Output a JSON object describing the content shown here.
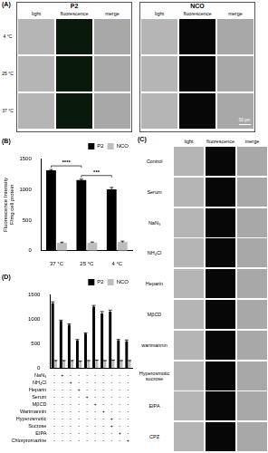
{
  "chart_data": [
    {
      "type": "bar",
      "label": "(B)",
      "categories": [
        "37 °C",
        "25 °C",
        "4 °C"
      ],
      "y_label": [
        "Fluorescence Intensity",
        "F/mg cell protein"
      ],
      "series": [
        {
          "name": "P2",
          "color": "#000000",
          "values": [
            1310,
            1150,
            1000
          ],
          "errors": [
            12,
            15,
            30
          ]
        },
        {
          "name": "NCO",
          "color": "#bdbdbd",
          "values": [
            130,
            135,
            145
          ],
          "errors": [
            10,
            8,
            12
          ]
        }
      ],
      "ylim": [
        0,
        1500
      ],
      "yticks": [
        0,
        500,
        1000,
        1500
      ],
      "grid": false,
      "legend": "top-right",
      "annotations": [
        {
          "text": "****",
          "from": "37 °C",
          "to": "25 °C"
        },
        {
          "text": "***",
          "from": "25 °C",
          "to": "4 °C"
        }
      ]
    },
    {
      "type": "bar",
      "label": "(D)",
      "categories": [
        null,
        null,
        null,
        null,
        null,
        null,
        null,
        null,
        null,
        null
      ],
      "series": [
        {
          "name": "P2",
          "color": "#000000",
          "values": [
            1320,
            960,
            880,
            560,
            700,
            1250,
            1110,
            1150,
            560,
            540
          ],
          "errors": [
            30,
            15,
            20,
            20,
            15,
            25,
            40,
            30,
            20,
            30
          ]
        },
        {
          "name": "NCO",
          "color": "#bdbdbd",
          "values": [
            140,
            140,
            140,
            130,
            140,
            150,
            140,
            150,
            140,
            140
          ],
          "errors": [
            10,
            10,
            10,
            10,
            10,
            10,
            10,
            10,
            10,
            10
          ]
        }
      ],
      "ylim": [
        0,
        1500
      ],
      "yticks": [
        0,
        500,
        1000,
        1500
      ],
      "grid": false,
      "legend": "top-right",
      "tick_labels": "y",
      "treatments": [
        {
          "label": "NaN₃",
          "signs": [
            "-",
            "+",
            "-",
            "-",
            "-",
            "-",
            "-",
            "-",
            "-",
            "-"
          ]
        },
        {
          "label": "NH₄Cl",
          "signs": [
            "-",
            "-",
            "+",
            "-",
            "-",
            "-",
            "-",
            "-",
            "-",
            "-"
          ]
        },
        {
          "label": "Heparin",
          "signs": [
            "-",
            "-",
            "-",
            "+",
            "-",
            "-",
            "-",
            "-",
            "-",
            "-"
          ]
        },
        {
          "label": "Serum",
          "signs": [
            "-",
            "-",
            "-",
            "-",
            "+",
            "-",
            "-",
            "-",
            "-",
            "-"
          ]
        },
        {
          "label": "MβCD",
          "signs": [
            "-",
            "-",
            "-",
            "-",
            "-",
            "+",
            "-",
            "-",
            "-",
            "-"
          ]
        },
        {
          "label": "Wartmannin",
          "signs": [
            "-",
            "-",
            "-",
            "-",
            "-",
            "-",
            "+",
            "-",
            "-",
            "-"
          ]
        },
        {
          "label": "Hyperosmotic",
          "signs": [
            "-",
            "-",
            "-",
            "-",
            "-",
            "-",
            "-",
            "+",
            "-",
            "-"
          ]
        },
        {
          "label": "Sucrose",
          "signs": [
            "-",
            "-",
            "-",
            "-",
            "-",
            "-",
            "-",
            "+",
            "-",
            "-"
          ]
        },
        {
          "label": "EIPA",
          "signs": [
            "-",
            "-",
            "-",
            "-",
            "-",
            "-",
            "-",
            "-",
            "+",
            "-"
          ]
        },
        {
          "label": "Chlorpromazine",
          "signs": [
            "-",
            "-",
            "-",
            "-",
            "-",
            "-",
            "-",
            "-",
            "-",
            "+"
          ]
        }
      ]
    }
  ],
  "panel_a": {
    "label": "(A)",
    "groups": [
      "P2",
      "NCO"
    ],
    "columns": [
      "light",
      "fluorescence",
      "merge"
    ],
    "rows": [
      "4 °C",
      "25 °C",
      "37 °C"
    ],
    "scale_bar": "50 μm"
  },
  "panel_c": {
    "label": "(C)",
    "columns": [
      "light",
      "fluorescence",
      "merge"
    ],
    "rows": [
      "Control",
      "Serum",
      "NaN₃",
      "NH₄Cl",
      "Heparin",
      "MβCD",
      "wartmannin",
      "Hyperosmotic sucrose",
      "EIPA",
      "CPZ"
    ]
  }
}
